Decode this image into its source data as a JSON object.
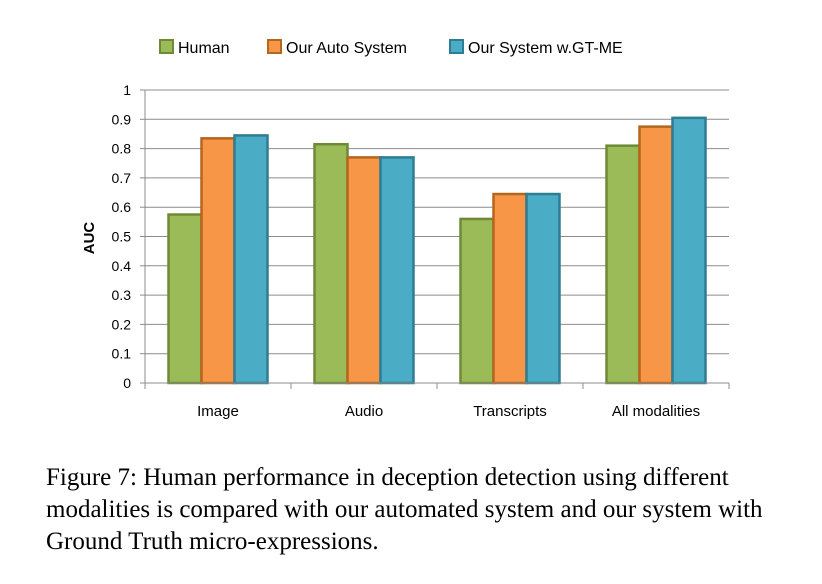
{
  "chart_data": {
    "type": "bar",
    "categories": [
      "Image",
      "Audio",
      "Transcripts",
      "All modalities"
    ],
    "series": [
      {
        "name": "Human",
        "values": [
          0.575,
          0.815,
          0.56,
          0.81
        ],
        "color": "#9bbb59",
        "stroke": "#6f8a36"
      },
      {
        "name": "Our Auto System",
        "values": [
          0.835,
          0.77,
          0.645,
          0.875
        ],
        "color": "#f79646",
        "stroke": "#b5651d"
      },
      {
        "name": "Our System w.GT-ME",
        "values": [
          0.845,
          0.77,
          0.645,
          0.905
        ],
        "color": "#4bacc6",
        "stroke": "#2f7d93"
      }
    ],
    "ylabel": "AUC",
    "xlabel": "",
    "ylim": [
      0,
      1
    ],
    "yticks": [
      "0",
      "0.1",
      "0.2",
      "0.3",
      "0.4",
      "0.5",
      "0.6",
      "0.7",
      "0.8",
      "0.9",
      "1"
    ],
    "grid": true,
    "legend": "top"
  },
  "caption": "Figure 7: Human performance in deception detection using different modalities is compared with our automated system and our system with Ground Truth micro-expressions."
}
